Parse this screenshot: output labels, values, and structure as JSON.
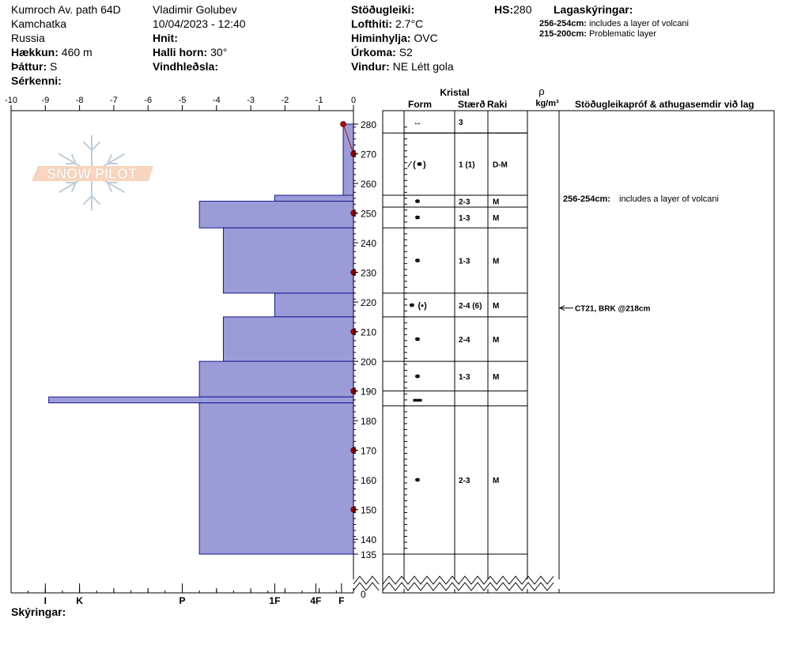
{
  "header": {
    "location": "Kumroch Av. path 64D",
    "region": "Kamchatka",
    "country": "Russia",
    "elevation_label": "Hækkun:",
    "elevation_value": "460 m",
    "aspect_label": "Þáttur:",
    "aspect_value": "S",
    "features_label": "Sérkenni:",
    "observer": "Vladimir Golubev",
    "datetime": "10/04/2023 - 12:40",
    "coords_label": "Hnit:",
    "slope_label": "Halli horn:",
    "slope_value": "30°",
    "wind_loading_label": "Vindhleðsla:",
    "stability_label": "Stöðugleiki:",
    "air_temp_label": "Lofthiti:",
    "air_temp_value": "2.7°C",
    "sky_label": "Himinhylja:",
    "sky_value": "OVC",
    "precip_label": "Úrkoma:",
    "precip_value": "S2",
    "wind_label": "Vindur:",
    "wind_value": "NE Létt gola",
    "hs_label": "HS:",
    "hs_value": "280",
    "layer_notes_title": "Lagaskýringar:",
    "layer_notes": [
      {
        "range": "256-254cm:",
        "text": "includes a layer of volcani"
      },
      {
        "range": "215-200cm:",
        "text": "Problematic layer"
      }
    ]
  },
  "columns": {
    "kristal": "Kristal",
    "form": "Form",
    "size": "Stærð",
    "moisture": "Raki",
    "density_symbol": "ρ",
    "density_unit": "kg/m³",
    "comments": "Stöðugleikapróf & athugasemdir við lag"
  },
  "footer": {
    "notes_label": "Skýringar:"
  },
  "logo_text": "SNOW PILOT",
  "colors": {
    "hardness_fill": "#9b9bd8",
    "hardness_stroke": "#1a1a8c",
    "temp": "#aa1111"
  },
  "chart_data": {
    "type": "bar",
    "title": "",
    "temperature_axis": {
      "range": [
        -10,
        0
      ],
      "ticks": [
        -10,
        -9,
        -8,
        -7,
        -6,
        -5,
        -4,
        -3,
        -2,
        -1,
        0
      ]
    },
    "height_axis": {
      "unit": "cm",
      "top": 280,
      "bottom": 135,
      "ticks": [
        280,
        270,
        260,
        250,
        240,
        230,
        220,
        210,
        200,
        190,
        180,
        170,
        160,
        150,
        140,
        135
      ],
      "ground": 0
    },
    "hardness_axis": {
      "labels": [
        "I",
        "K",
        "P",
        "1F",
        "4F",
        "F"
      ],
      "positions": [
        -9,
        -8,
        -5,
        -2.3,
        -1.1,
        -0.35
      ]
    },
    "hardness_profile": [
      {
        "top": 280,
        "bottom": 256,
        "value": -0.3
      },
      {
        "top": 256,
        "bottom": 254,
        "value": -2.3
      },
      {
        "top": 254,
        "bottom": 245,
        "value": -4.5
      },
      {
        "top": 245,
        "bottom": 223,
        "value": -3.8
      },
      {
        "top": 223,
        "bottom": 215,
        "value": -2.3
      },
      {
        "top": 215,
        "bottom": 200,
        "value": -3.8
      },
      {
        "top": 200,
        "bottom": 188,
        "value": -4.5
      },
      {
        "top": 188,
        "bottom": 186,
        "value": -8.9
      },
      {
        "top": 186,
        "bottom": 135,
        "value": -4.5
      }
    ],
    "temperature_profile": [
      {
        "height": 280,
        "temp": -0.3
      },
      {
        "height": 270,
        "temp": 0
      },
      {
        "height": 250,
        "temp": 0
      },
      {
        "height": 230,
        "temp": 0
      },
      {
        "height": 210,
        "temp": 0
      },
      {
        "height": 190,
        "temp": 0
      },
      {
        "height": 170,
        "temp": 0
      },
      {
        "height": 150,
        "temp": 0
      }
    ],
    "layers": [
      {
        "top": 280,
        "bottom": 277,
        "form": "↔",
        "size": "3",
        "moisture": ""
      },
      {
        "top": 277,
        "bottom": 256,
        "form": "⁄ (⚭)",
        "size": "1 (1)",
        "moisture": "D-M"
      },
      {
        "top": 256,
        "bottom": 252,
        "form": "⚭",
        "size": "2-3",
        "moisture": "M"
      },
      {
        "top": 252,
        "bottom": 245,
        "form": "⚭",
        "size": "1-3",
        "moisture": "M"
      },
      {
        "top": 245,
        "bottom": 223,
        "form": "⚭",
        "size": "1-3",
        "moisture": "M"
      },
      {
        "top": 223,
        "bottom": 215,
        "form": "⚭ (▪)",
        "size": "2-4 (6)",
        "moisture": "M"
      },
      {
        "top": 215,
        "bottom": 200,
        "form": "⚭",
        "size": "2-4",
        "moisture": "M"
      },
      {
        "top": 200,
        "bottom": 190,
        "form": "⚭",
        "size": "1-3",
        "moisture": "M"
      },
      {
        "top": 190,
        "bottom": 185,
        "form": "▬",
        "size": "",
        "moisture": ""
      },
      {
        "top": 185,
        "bottom": 135,
        "form": "⚭",
        "size": "2-3",
        "moisture": "M"
      }
    ],
    "comments": [
      {
        "height": 255,
        "range": "256-254cm:",
        "text": "includes a layer of volcani"
      },
      {
        "height": 218,
        "text": "CT21, BRK @218cm"
      }
    ]
  }
}
